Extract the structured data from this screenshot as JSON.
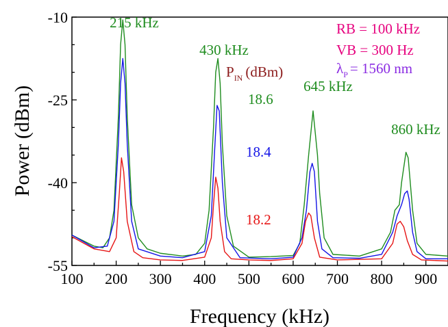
{
  "chart_data": {
    "type": "line",
    "xlabel": "Frequency (kHz)",
    "ylabel": "Power (dBm)",
    "xlim": [
      100,
      950
    ],
    "ylim": [
      -55,
      -10
    ],
    "xticks": [
      100,
      200,
      300,
      400,
      500,
      600,
      700,
      800,
      900
    ],
    "yticks": [
      -10,
      -25,
      -40,
      -55
    ],
    "grid": false,
    "series": [
      {
        "name": "18.6",
        "color": "#1e8c1e",
        "x": [
          100,
          150,
          170,
          185,
          195,
          205,
          210,
          215,
          220,
          225,
          235,
          250,
          270,
          300,
          350,
          380,
          400,
          410,
          420,
          425,
          430,
          435,
          440,
          450,
          465,
          500,
          550,
          600,
          615,
          625,
          635,
          645,
          655,
          660,
          670,
          690,
          750,
          800,
          820,
          830,
          840,
          845,
          855,
          860,
          870,
          880,
          900,
          950
        ],
        "y": [
          -49.5,
          -51.5,
          -51.8,
          -50,
          -45,
          -28,
          -15,
          -10.5,
          -15,
          -28,
          -44,
          -50,
          -52,
          -52.8,
          -53.3,
          -53,
          -51,
          -45,
          -30,
          -20,
          -17.5,
          -22,
          -33,
          -46,
          -51.5,
          -53.5,
          -53.4,
          -53.2,
          -51,
          -44,
          -35,
          -27,
          -35,
          -42,
          -50,
          -53,
          -53.3,
          -52,
          -49,
          -45,
          -44,
          -40,
          -34.5,
          -35.5,
          -45,
          -51,
          -53,
          -53.3
        ]
      },
      {
        "name": "18.4",
        "color": "#1414e6",
        "x": [
          100,
          150,
          180,
          195,
          205,
          210,
          215,
          220,
          225,
          235,
          250,
          300,
          350,
          400,
          415,
          422,
          428,
          433,
          440,
          450,
          480,
          550,
          600,
          620,
          630,
          638,
          643,
          648,
          655,
          665,
          690,
          750,
          800,
          825,
          835,
          845,
          852,
          858,
          862,
          870,
          880,
          900,
          950
        ],
        "y": [
          -49.5,
          -51.8,
          -51.5,
          -47,
          -33,
          -22,
          -17.5,
          -22,
          -33,
          -47,
          -52,
          -53.3,
          -53.6,
          -52.5,
          -46,
          -35,
          -26,
          -27,
          -40,
          -50,
          -53.6,
          -53.8,
          -53.5,
          -50,
          -45,
          -38,
          -36.5,
          -38,
          -47,
          -52,
          -53.6,
          -53.7,
          -53,
          -49,
          -46,
          -44,
          -42,
          -41.5,
          -43,
          -49,
          -52.5,
          -53.8,
          -53.8
        ]
      },
      {
        "name": "18.2",
        "color": "#e61414",
        "x": [
          100,
          150,
          185,
          200,
          207,
          212,
          217,
          225,
          240,
          260,
          300,
          350,
          400,
          415,
          420,
          425,
          430,
          435,
          445,
          460,
          500,
          550,
          600,
          620,
          628,
          635,
          640,
          648,
          660,
          700,
          800,
          825,
          835,
          842,
          850,
          858,
          870,
          890,
          950
        ],
        "y": [
          -49.8,
          -52,
          -52.5,
          -50,
          -42,
          -35.5,
          -38,
          -47,
          -52.5,
          -53.6,
          -54,
          -54.1,
          -53.5,
          -50,
          -44,
          -39,
          -41,
          -47,
          -52.5,
          -53.8,
          -54,
          -54.1,
          -53.8,
          -51,
          -47,
          -45.5,
          -46,
          -50,
          -53.5,
          -54,
          -53.8,
          -51,
          -47.5,
          -47,
          -48,
          -50.5,
          -53,
          -54,
          -54.2
        ]
      }
    ],
    "annotations": {
      "peaks": [
        "215 kHz",
        "430 kHz",
        "645 kHz",
        "860 kHz"
      ],
      "pin_label_main": "P",
      "pin_label_sub": "IN",
      "pin_label_unit": "(dBm)",
      "rb": "RB = 100 kHz",
      "vb": "VB = 300 Hz",
      "lambda_main": "λ",
      "lambda_sub": "P",
      "lambda_value": "= 1560 nm",
      "level_186": "18.6",
      "level_184": "18.4",
      "level_182": "18.2"
    },
    "colors": {
      "pin_label": "#8b1a1a",
      "rb_vb": "#e6007e",
      "lambda": "#8a2be2"
    }
  }
}
